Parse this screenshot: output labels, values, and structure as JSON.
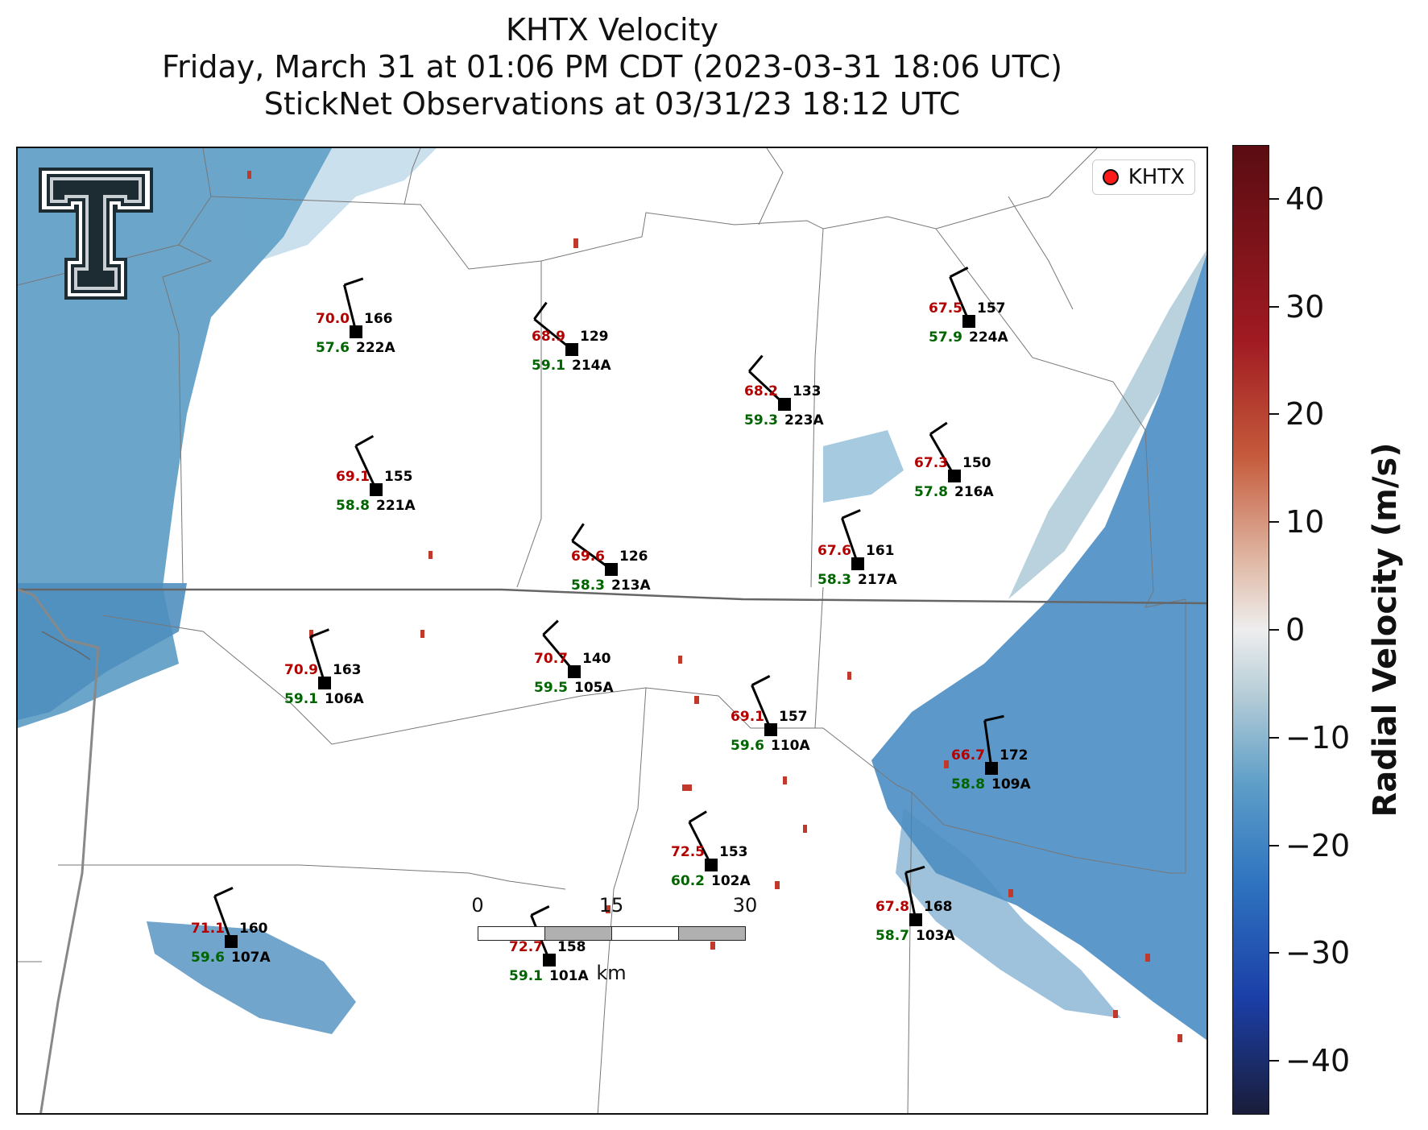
{
  "title": {
    "line1": "KHTX Velocity",
    "line2": "Friday, March 31 at 01:06 PM CDT (2023-03-31 18:06 UTC)",
    "line3": "StickNet Observations at 03/31/23 18:12 UTC"
  },
  "legend": {
    "label": "KHTX",
    "marker_color": "#ff1a1a"
  },
  "logo": {
    "name": "texas-tech-double-t-logo"
  },
  "stations": [
    {
      "id": "222A",
      "temp": "70.0",
      "dew": "57.6",
      "dir": "166"
    },
    {
      "id": "214A",
      "temp": "68.9",
      "dew": "59.1",
      "dir": "129"
    },
    {
      "id": "224A",
      "temp": "67.5",
      "dew": "57.9",
      "dir": "157"
    },
    {
      "id": "223A",
      "temp": "68.2",
      "dew": "59.3",
      "dir": "133"
    },
    {
      "id": "221A",
      "temp": "69.1",
      "dew": "58.8",
      "dir": "155"
    },
    {
      "id": "216A",
      "temp": "67.3",
      "dew": "57.8",
      "dir": "150"
    },
    {
      "id": "213A",
      "temp": "69.6",
      "dew": "58.3",
      "dir": "126"
    },
    {
      "id": "217A",
      "temp": "67.6",
      "dew": "58.3",
      "dir": "161"
    },
    {
      "id": "106A",
      "temp": "70.9",
      "dew": "59.1",
      "dir": "163"
    },
    {
      "id": "105A",
      "temp": "70.7",
      "dew": "59.5",
      "dir": "140"
    },
    {
      "id": "110A",
      "temp": "69.1",
      "dew": "59.6",
      "dir": "157"
    },
    {
      "id": "109A",
      "temp": "66.7",
      "dew": "58.8",
      "dir": "172"
    },
    {
      "id": "102A",
      "temp": "72.5",
      "dew": "60.2",
      "dir": "153"
    },
    {
      "id": "103A",
      "temp": "67.8",
      "dew": "58.7",
      "dir": "168"
    },
    {
      "id": "107A",
      "temp": "71.1",
      "dew": "59.6",
      "dir": "160"
    },
    {
      "id": "101A",
      "temp": "72.7",
      "dew": "59.1",
      "dir": "158"
    }
  ],
  "scalebar": {
    "ticks": [
      "0",
      "15",
      "30"
    ],
    "unit": "km"
  },
  "colorbar": {
    "label": "Radial Velocity (m/s)",
    "ticks": [
      "40",
      "30",
      "20",
      "10",
      "0",
      "−10",
      "−20",
      "−30",
      "−40"
    ],
    "range": [
      -45,
      45
    ],
    "colors": {
      "low": "#1a1d3a",
      "mid_low": "#2f74c0",
      "zero": "#eeeeee",
      "mid_high": "#c55a3b",
      "high": "#5a0c12"
    }
  },
  "colors": {
    "temp": "#b30000",
    "dew": "#006400",
    "radar_blue": "#4f8fbf",
    "radar_red": "#c0392b"
  }
}
